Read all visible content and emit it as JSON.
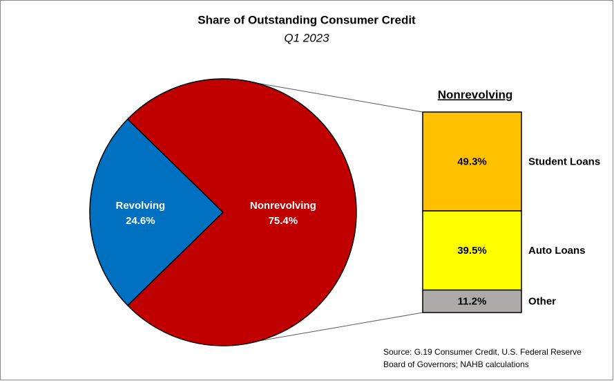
{
  "chart_data": [
    {
      "type": "pie",
      "title": "Share of Outstanding Consumer Credit",
      "subtitle": "Q1 2023",
      "categories": [
        "Revolving",
        "Nonrevolving"
      ],
      "values": [
        24.6,
        75.4
      ],
      "value_labels": [
        "24.6%",
        "75.4%"
      ],
      "colors": [
        "#0070c0",
        "#c00000"
      ],
      "annotation": "Source: G.19 Consumer Credit, U.S. Federal Reserve Board of Governors; NAHB calculations"
    },
    {
      "type": "stacked-bar",
      "title": "Nonrevolving",
      "categories": [
        "Student Loans",
        "Auto Loans",
        "Other"
      ],
      "values": [
        49.3,
        39.5,
        11.2
      ],
      "value_labels": [
        "49.3%",
        "39.5%",
        "11.2%"
      ],
      "colors": [
        "#ffc000",
        "#ffff00",
        "#aeaaaa"
      ]
    }
  ]
}
